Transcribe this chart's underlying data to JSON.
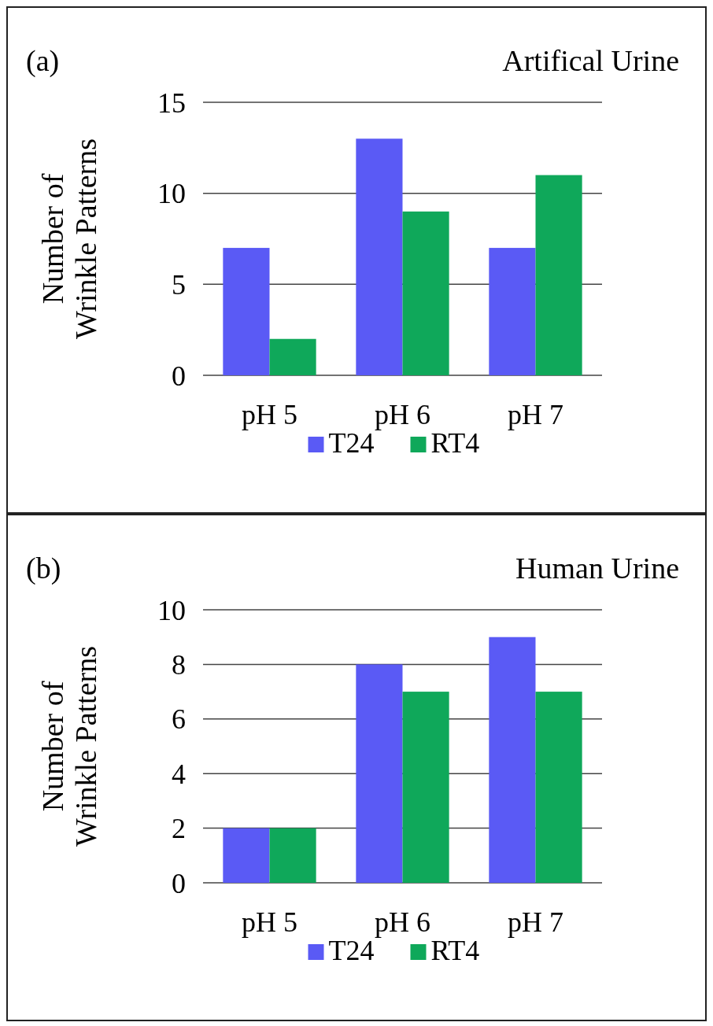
{
  "chart_data": [
    {
      "type": "bar",
      "title": "Artifical Urine",
      "annotations": [
        "(a)"
      ],
      "ylabel": "Number of Wrinkle Patterns",
      "categories": [
        "pH 5",
        "pH 6",
        "pH 7"
      ],
      "series": [
        {
          "name": "T24",
          "color": "#5a5af5",
          "values": [
            7,
            13,
            7
          ]
        },
        {
          "name": "RT4",
          "color": "#0fa85a",
          "values": [
            2,
            9,
            11
          ]
        }
      ],
      "ylim": [
        0,
        15
      ],
      "yticks": [
        0,
        5,
        10,
        15
      ],
      "grid": "y",
      "legend": "bottom"
    },
    {
      "type": "bar",
      "title": "Human Urine",
      "annotations": [
        "(b)"
      ],
      "ylabel": "Number of Wrinkle Patterns",
      "categories": [
        "pH 5",
        "pH 6",
        "pH 7"
      ],
      "series": [
        {
          "name": "T24",
          "color": "#5a5af5",
          "values": [
            2,
            8,
            9
          ]
        },
        {
          "name": "RT4",
          "color": "#0fa85a",
          "values": [
            2,
            7,
            7
          ]
        }
      ],
      "ylim": [
        0,
        10
      ],
      "yticks": [
        0,
        2,
        4,
        6,
        8,
        10
      ],
      "grid": "y",
      "legend": "bottom"
    }
  ]
}
